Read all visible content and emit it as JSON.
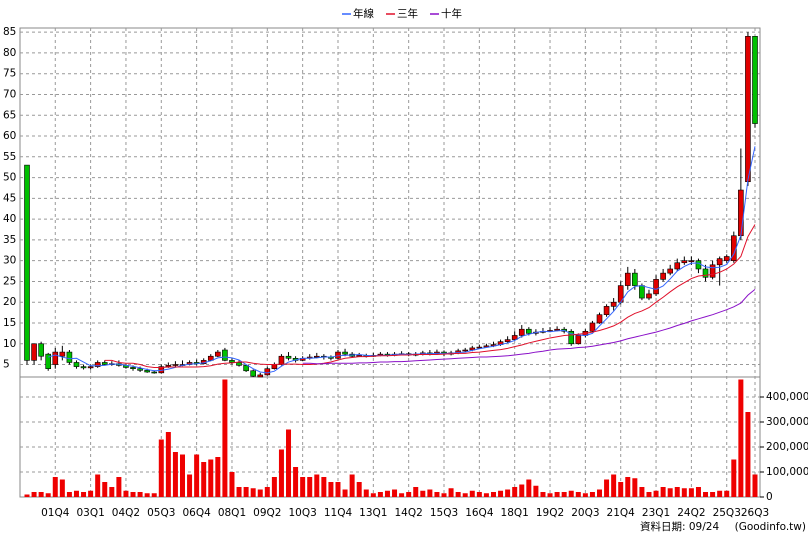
{
  "chart_data": {
    "type": "candlestick",
    "categories": [
      null,
      null,
      null,
      null,
      "01Q4",
      null,
      null,
      null,
      null,
      "03Q1",
      null,
      null,
      null,
      null,
      "04Q2",
      null,
      null,
      null,
      null,
      "05Q3",
      null,
      null,
      null,
      null,
      "06Q4",
      null,
      null,
      null,
      null,
      "08Q1",
      null,
      null,
      null,
      null,
      "09Q2",
      null,
      null,
      null,
      null,
      "10Q3",
      null,
      null,
      null,
      null,
      "11Q4",
      null,
      null,
      null,
      null,
      "13Q1",
      null,
      null,
      null,
      null,
      "14Q2",
      null,
      null,
      null,
      null,
      "15Q3",
      null,
      null,
      null,
      null,
      "16Q4",
      null,
      null,
      null,
      null,
      "18Q1",
      null,
      null,
      null,
      null,
      "19Q2",
      null,
      null,
      null,
      null,
      "20Q3",
      null,
      null,
      null,
      null,
      "21Q4",
      null,
      null,
      null,
      null,
      "23Q1",
      null,
      null,
      null,
      null,
      "24Q2",
      null,
      null,
      null,
      null,
      "25Q3",
      null,
      null,
      null,
      "26Q3"
    ],
    "open": [
      53,
      6,
      10,
      7.5,
      5,
      7,
      8,
      5.5,
      4.5,
      4.2,
      4.5,
      5.5,
      5,
      5.2,
      4.8,
      4.3,
      4,
      3.6,
      3.2,
      3,
      4.5,
      4.8,
      5,
      5,
      5.5,
      5.2,
      6,
      7,
      8.5,
      6,
      5.5,
      4.8,
      3.5,
      2,
      2.5,
      4,
      5,
      7,
      6.5,
      6,
      6.5,
      6.8,
      7,
      6.8,
      6.5,
      8,
      7.5,
      7,
      7.2,
      7,
      7.2,
      7.5,
      7.2,
      7.5,
      7.6,
      7.3,
      7.5,
      7.8,
      7.6,
      8,
      7.5,
      7.8,
      8.3,
      8.5,
      9,
      9.2,
      9.5,
      9.8,
      10.5,
      11,
      12,
      13.5,
      12.5,
      12.8,
      13,
      13.2,
      13.5,
      13,
      10,
      12,
      13,
      15,
      17,
      19,
      20,
      24,
      27,
      24,
      21,
      22,
      25.5,
      27,
      28,
      29.5,
      30,
      30,
      28,
      26,
      29,
      30,
      30,
      36,
      49,
      84
    ],
    "high": [
      53,
      10,
      10.5,
      7.8,
      9,
      9.5,
      8.5,
      6,
      5,
      5,
      6,
      6,
      5.8,
      6,
      5.2,
      4.8,
      4.5,
      4,
      3.6,
      5,
      5.5,
      5.8,
      6,
      6,
      6.2,
      6.5,
      7.5,
      8.5,
      9,
      6.5,
      6,
      5,
      3.8,
      3,
      4.5,
      5.5,
      7.5,
      8,
      7,
      7,
      7.5,
      7.8,
      7.5,
      7.2,
      8.5,
      8.8,
      8,
      7.8,
      7.6,
      7.8,
      8,
      8,
      8,
      8.2,
      8,
      8,
      8.3,
      8.5,
      8.6,
      8.4,
      8.3,
      8.8,
      9,
      9.5,
      9.8,
      10,
      10.5,
      11,
      11.8,
      13,
      14.5,
      14,
      13.5,
      13.8,
      14,
      14.2,
      14,
      13.5,
      12.5,
      13.5,
      15.5,
      17.5,
      19.5,
      21,
      25,
      28.5,
      28,
      24.5,
      23,
      26.5,
      28,
      29,
      30.5,
      31,
      31,
      30.5,
      29,
      30,
      31,
      31.5,
      37,
      57,
      85,
      84
    ],
    "low": [
      5,
      5,
      6,
      3.5,
      4,
      6,
      5,
      4,
      3.8,
      3.8,
      4.2,
      4.8,
      4.7,
      4.5,
      4,
      3.5,
      3.2,
      3,
      2.8,
      2.8,
      4.2,
      4.5,
      4.6,
      4.8,
      4.8,
      5,
      5.8,
      6.8,
      5.8,
      5,
      4.5,
      3.2,
      2,
      2,
      2.3,
      3.8,
      4.8,
      6,
      5.5,
      5.8,
      6.2,
      6.5,
      6.2,
      6,
      6.3,
      7,
      6.8,
      6.8,
      6.7,
      6.8,
      7,
      6.9,
      7,
      7.2,
      7,
      7,
      7.2,
      7.2,
      7.3,
      7,
      7.2,
      7.5,
      8,
      8.2,
      8.8,
      9,
      9.2,
      9.5,
      10.2,
      10.8,
      11.5,
      12,
      12,
      12.5,
      12.8,
      13,
      12.5,
      9.5,
      9.8,
      11.5,
      12.8,
      14.8,
      16.5,
      18,
      19.5,
      23,
      23,
      20.5,
      20.5,
      21.5,
      25,
      26.5,
      27.5,
      29,
      29,
      27,
      25,
      25.5,
      24,
      29.5,
      29.5,
      35,
      48,
      62
    ],
    "close": [
      6,
      10,
      7,
      4,
      8,
      8,
      5.5,
      4.5,
      4.2,
      4.5,
      5.5,
      5,
      5.2,
      4.8,
      4.3,
      4,
      3.6,
      3.2,
      3,
      4.5,
      4.8,
      5,
      5,
      5.5,
      5.2,
      6,
      7,
      8,
      6,
      5.5,
      4.8,
      3.5,
      2.2,
      2.5,
      4,
      5,
      7,
      6.5,
      6,
      6.5,
      6.8,
      7,
      6.8,
      6.5,
      8,
      7.5,
      7,
      7.2,
      7,
      7.2,
      7.5,
      7.2,
      7.5,
      7.6,
      7.3,
      7.5,
      7.8,
      7.6,
      8,
      7.5,
      7.8,
      8.3,
      8.5,
      9,
      9.2,
      9.5,
      9.8,
      10.5,
      11,
      12,
      13.5,
      12.5,
      12.8,
      13,
      13.2,
      13.5,
      13,
      10,
      12,
      13,
      15,
      17,
      19,
      20,
      24,
      27,
      24,
      21,
      22,
      25.5,
      27,
      28,
      29.5,
      30,
      30,
      28,
      26,
      29,
      30.5,
      31,
      36,
      47,
      84,
      63
    ],
    "volume": [
      10000,
      20000,
      20000,
      15000,
      80000,
      70000,
      20000,
      25000,
      20000,
      25000,
      90000,
      60000,
      40000,
      80000,
      25000,
      20000,
      20000,
      15000,
      15000,
      230000,
      260000,
      180000,
      170000,
      90000,
      170000,
      140000,
      150000,
      160000,
      470000,
      100000,
      40000,
      40000,
      35000,
      30000,
      40000,
      80000,
      190000,
      270000,
      120000,
      80000,
      80000,
      90000,
      80000,
      60000,
      60000,
      30000,
      90000,
      60000,
      30000,
      15000,
      20000,
      25000,
      30000,
      15000,
      20000,
      40000,
      25000,
      30000,
      20000,
      15000,
      35000,
      20000,
      15000,
      25000,
      20000,
      15000,
      20000,
      25000,
      30000,
      40000,
      50000,
      70000,
      45000,
      20000,
      15000,
      20000,
      20000,
      25000,
      20000,
      15000,
      20000,
      30000,
      70000,
      90000,
      60000,
      80000,
      75000,
      40000,
      20000,
      25000,
      40000,
      35000,
      40000,
      35000,
      35000,
      40000,
      20000,
      20000,
      25000,
      25000,
      150000,
      470000,
      340000,
      90000
    ],
    "up_color": "#e00000",
    "down_color": "#00c000",
    "volume_color": "#ee0000",
    "series": [
      {
        "name": "年線",
        "color": "#3366ff",
        "values": [
          null,
          null,
          null,
          6.8,
          7.3,
          6.8,
          6.4,
          6.5,
          5.6,
          4.7,
          4.7,
          4.8,
          5.1,
          5.1,
          4.8,
          4.6,
          4.2,
          3.8,
          3.5,
          3.6,
          3.9,
          4.3,
          4.8,
          5.1,
          5.2,
          5.4,
          5.9,
          6.6,
          6.8,
          6.6,
          6.1,
          5.0,
          4.0,
          3.2,
          3.0,
          3.4,
          4.6,
          5.6,
          6.1,
          6.5,
          6.5,
          6.6,
          6.8,
          6.8,
          7.1,
          7.2,
          7.3,
          7.4,
          7.2,
          7.1,
          7.2,
          7.2,
          7.4,
          7.5,
          7.4,
          7.5,
          7.6,
          7.6,
          7.7,
          7.7,
          7.7,
          7.9,
          8.0,
          8.4,
          8.8,
          9.1,
          9.4,
          9.8,
          10.2,
          10.8,
          11.8,
          12.3,
          12.7,
          13.0,
          12.9,
          13.1,
          13.2,
          12.4,
          12.1,
          12.0,
          12.5,
          14.3,
          16.0,
          17.8,
          20.0,
          22.5,
          23.8,
          24.0,
          23.5,
          23.1,
          23.9,
          25.6,
          27.5,
          28.6,
          29.4,
          29.4,
          28.5,
          28.3,
          28.4,
          29.1,
          31.6,
          36.1,
          49.5,
          57.5
        ]
      },
      {
        "name": "三年",
        "color": "#e0102a",
        "values": [
          null,
          null,
          null,
          null,
          null,
          null,
          null,
          null,
          null,
          null,
          null,
          6.0,
          6.0,
          5.5,
          5.3,
          5.3,
          5.0,
          4.5,
          4.3,
          4.3,
          4.4,
          4.4,
          4.4,
          4.4,
          4.4,
          4.5,
          4.7,
          5.1,
          5.3,
          5.4,
          5.6,
          5.6,
          5.3,
          5.1,
          5.0,
          5.0,
          5.1,
          5.1,
          5.1,
          5.0,
          5.0,
          5.1,
          5.3,
          5.6,
          6.1,
          6.5,
          6.7,
          6.9,
          6.9,
          7.0,
          7.1,
          7.1,
          7.2,
          7.3,
          7.3,
          7.4,
          7.4,
          7.4,
          7.4,
          7.5,
          7.6,
          7.7,
          7.7,
          7.9,
          8.0,
          8.2,
          8.4,
          8.6,
          8.9,
          9.3,
          9.7,
          10.2,
          10.6,
          11.0,
          11.4,
          11.7,
          12.0,
          12.1,
          12.3,
          12.5,
          12.8,
          13.2,
          13.7,
          14.3,
          15.2,
          16.4,
          17.3,
          17.9,
          18.7,
          20.0,
          21.2,
          22.5,
          23.7,
          24.7,
          25.7,
          26.3,
          26.5,
          26.7,
          27.2,
          28.0,
          29.2,
          31.0,
          35.8,
          38.7
        ]
      },
      {
        "name": "十年",
        "color": "#8a10c8",
        "values": [
          null,
          null,
          null,
          null,
          null,
          null,
          null,
          null,
          null,
          null,
          null,
          null,
          null,
          null,
          null,
          null,
          null,
          null,
          null,
          null,
          null,
          null,
          null,
          null,
          null,
          null,
          null,
          null,
          null,
          null,
          null,
          null,
          null,
          null,
          null,
          null,
          null,
          null,
          null,
          5.3,
          5.3,
          5.2,
          5.2,
          5.3,
          5.3,
          5.3,
          5.3,
          5.4,
          5.4,
          5.5,
          5.6,
          5.6,
          5.7,
          5.7,
          5.8,
          5.9,
          6.0,
          6.1,
          6.2,
          6.3,
          6.4,
          6.5,
          6.6,
          6.7,
          6.8,
          6.8,
          6.9,
          7.0,
          7.1,
          7.3,
          7.5,
          7.7,
          8.0,
          8.2,
          8.5,
          8.7,
          8.8,
          8.9,
          9.1,
          9.2,
          9.4,
          9.7,
          10.0,
          10.3,
          10.7,
          11.2,
          11.6,
          12.0,
          12.4,
          12.8,
          13.3,
          13.8,
          14.4,
          14.9,
          15.5,
          16.0,
          16.5,
          17.0,
          17.6,
          18.2,
          18.9,
          19.8,
          21.7,
          23.1
        ]
      }
    ],
    "ylim": [
      2,
      86
    ],
    "yticks": [
      5,
      10,
      15,
      20,
      25,
      30,
      35,
      40,
      45,
      50,
      55,
      60,
      65,
      70,
      75,
      80,
      85
    ],
    "vlim": [
      0,
      480000
    ],
    "vticks": [
      0,
      {
        "value": 100000,
        "label": "100,000"
      },
      {
        "value": 200000,
        "label": "200,000"
      },
      {
        "value": 300000,
        "label": "300,000"
      },
      {
        "value": 400000,
        "label": "400,000"
      }
    ],
    "grid": true,
    "date_note": "資料日期: 09/24",
    "source": "(Goodinfo.tw)"
  }
}
